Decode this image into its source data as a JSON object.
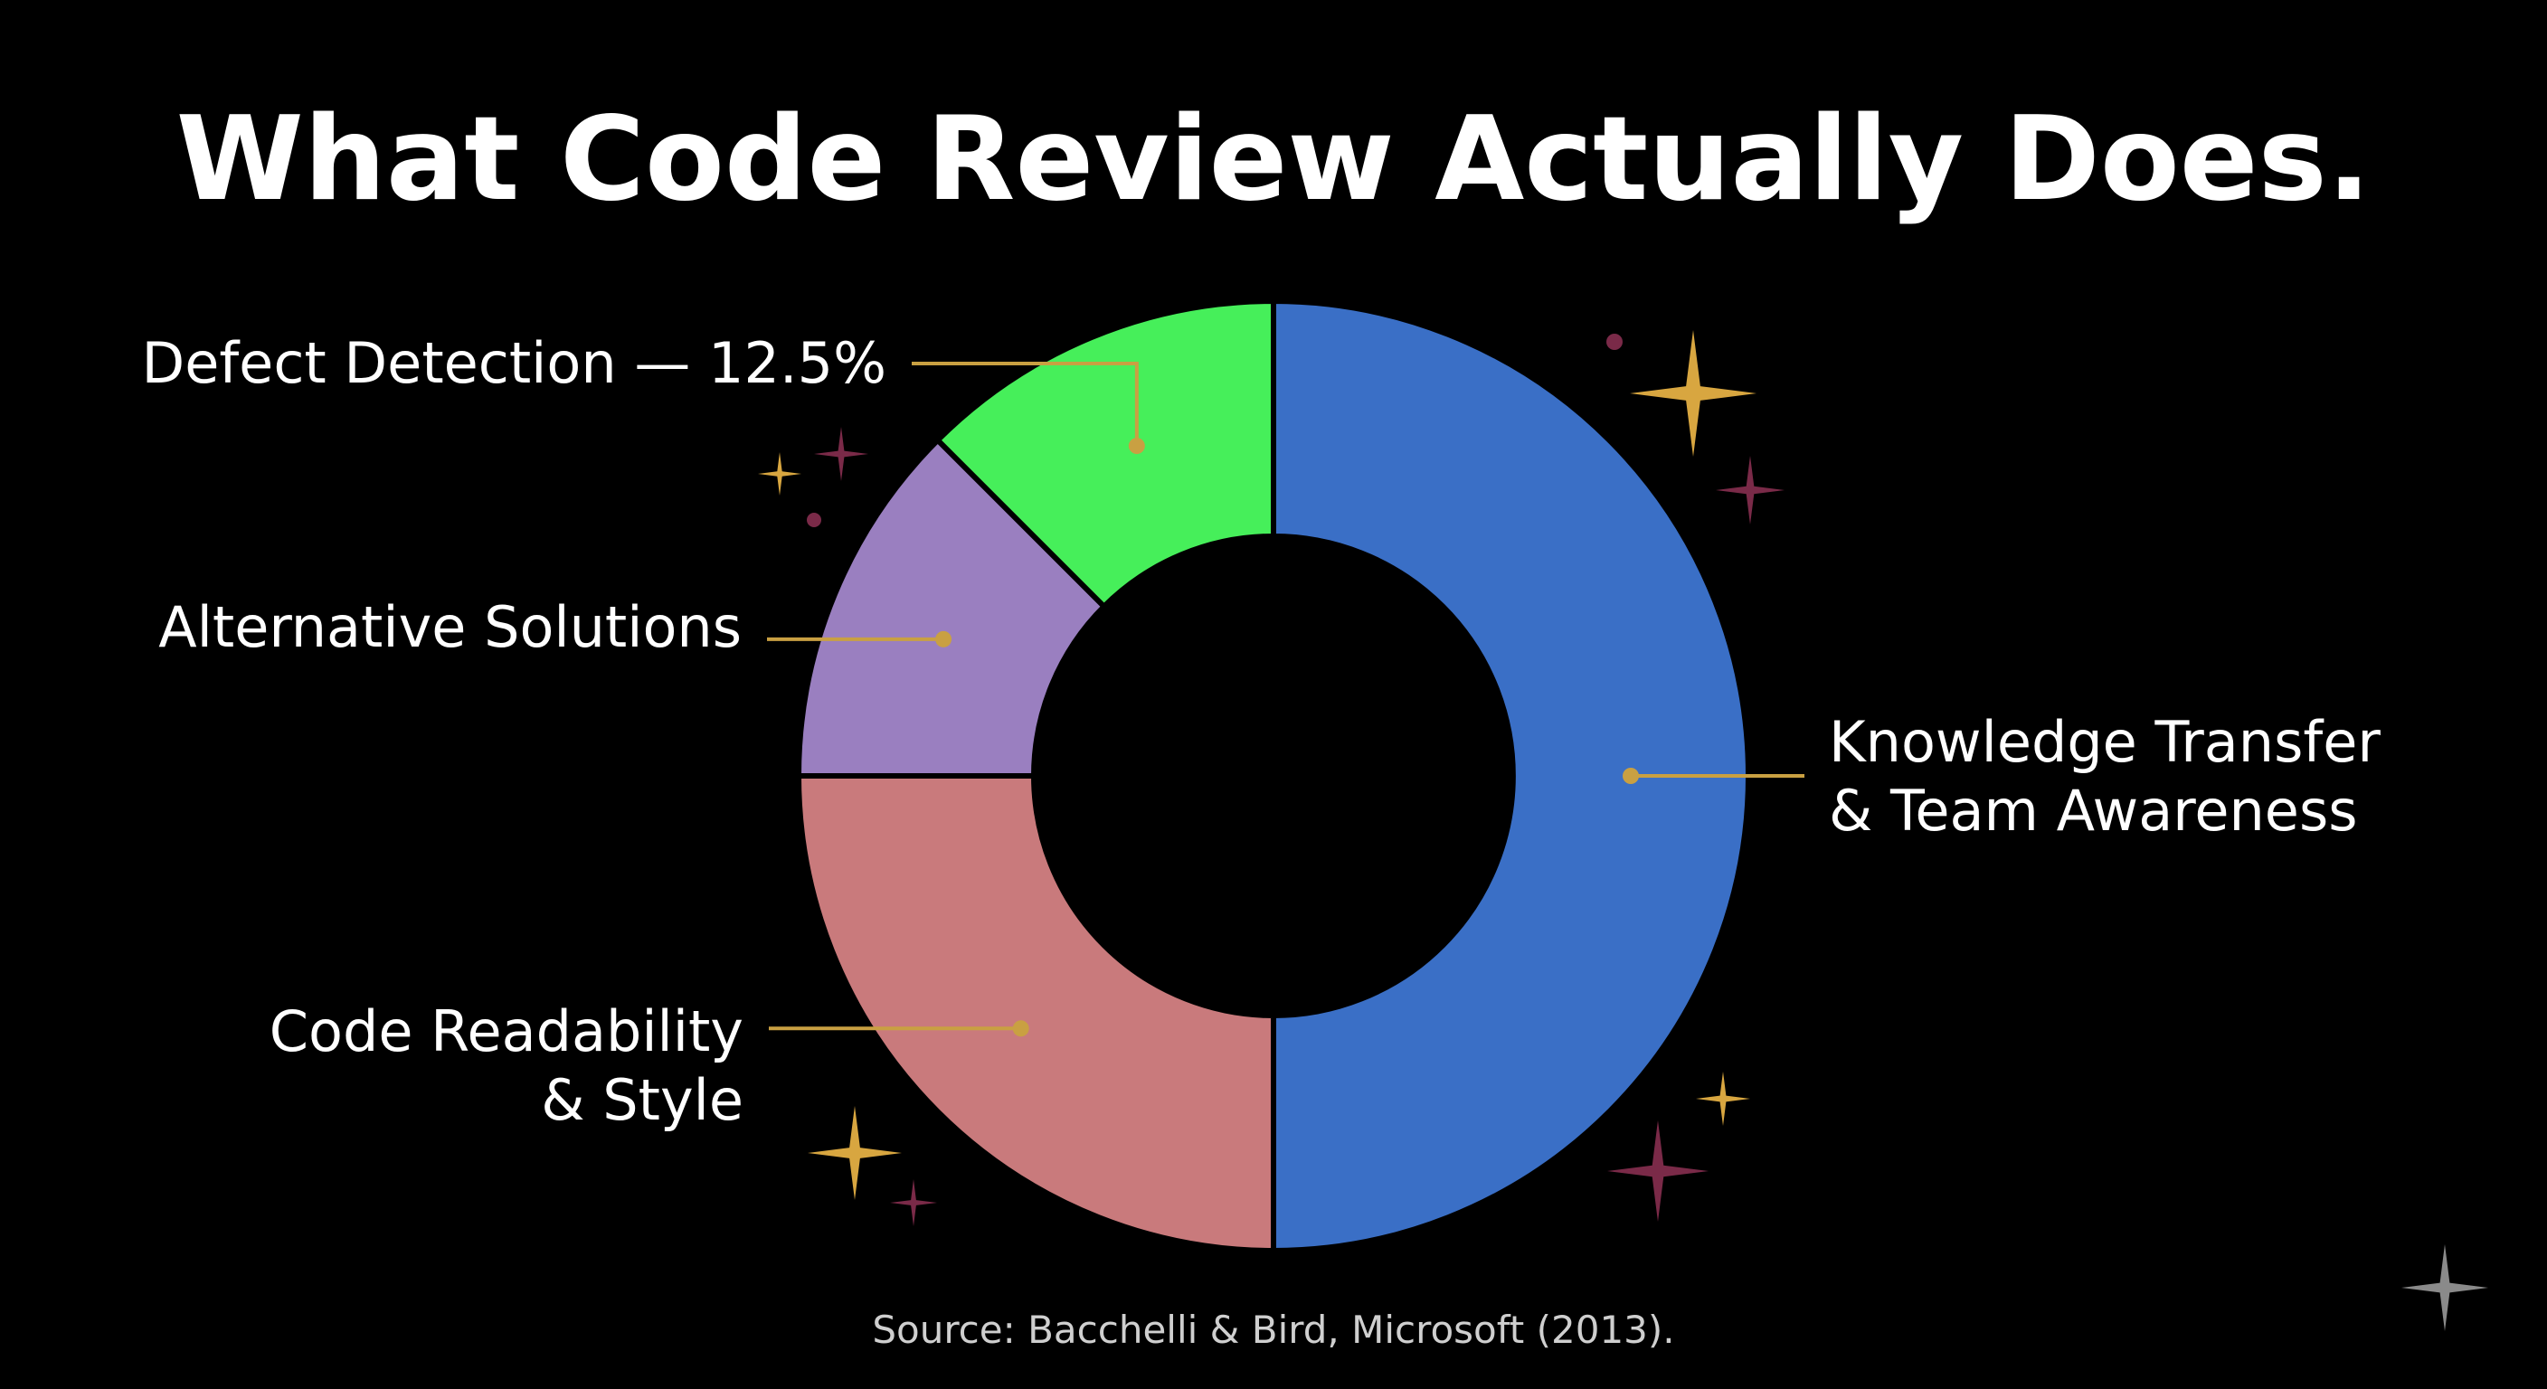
{
  "chart_data": {
    "type": "pie",
    "style": "donut",
    "title": "What Code Review Actually Does.",
    "source": "Source: Bacchelli & Bird, Microsoft (2013).",
    "slices": [
      {
        "key": "knowledge",
        "label": [
          "Knowledge Transfer",
          "& Team Awareness"
        ],
        "value": 50.0,
        "color": "#3a6fc6"
      },
      {
        "key": "readability",
        "label": [
          "Code Readability",
          "& Style"
        ],
        "value": 25.0,
        "color": "#c97a7c"
      },
      {
        "key": "alternatives",
        "label": [
          "Alternative Solutions"
        ],
        "value": 12.5,
        "color": "#9a7fc0"
      },
      {
        "key": "defects",
        "label": [
          "Defect Detection — 12.5%"
        ],
        "value": 12.5,
        "color": "#46ef5a"
      }
    ],
    "start_angle_deg": 0,
    "direction": "clockwise",
    "legend": "none"
  },
  "colors": {
    "background": "#000000",
    "leader_line": "#c9a042",
    "sparkle_gold": "#d8a640",
    "sparkle_maroon": "#7a2a48",
    "logo_gray": "#8a8a8a"
  },
  "decorations": {
    "sparkles": "sparkle-icon",
    "dots": "dot-icon",
    "logo": "gemini-star-icon"
  }
}
